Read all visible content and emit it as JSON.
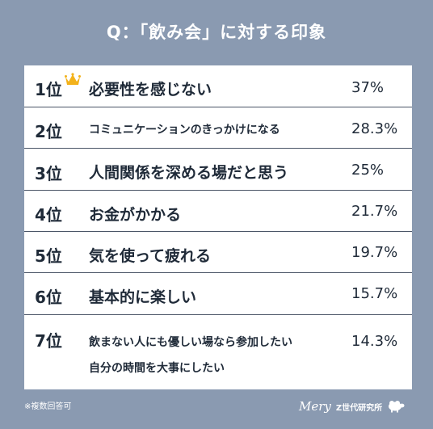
{
  "title": "Q：「飲み会」に対する印象",
  "chart_data": {
    "type": "table",
    "columns": [
      "rank",
      "label",
      "percent"
    ],
    "rows": [
      {
        "rank": "1位",
        "lines": [
          "必要性を感じない"
        ],
        "percent": "37%"
      },
      {
        "rank": "2位",
        "lines": [
          "コミュニケーションのきっかけになる"
        ],
        "percent": "28.3%"
      },
      {
        "rank": "3位",
        "lines": [
          "人間関係を深める場だと思う"
        ],
        "percent": "25%"
      },
      {
        "rank": "4位",
        "lines": [
          "お金がかかる"
        ],
        "percent": "21.7%"
      },
      {
        "rank": "5位",
        "lines": [
          "気を使って疲れる"
        ],
        "percent": "19.7%"
      },
      {
        "rank": "6位",
        "lines": [
          "基本的に楽しい"
        ],
        "percent": "15.7%"
      },
      {
        "rank": "7位",
        "lines": [
          "飲まない人にも優しい場なら参加したい",
          "自分の時間を大事にしたい"
        ],
        "percent": "14.3%"
      }
    ]
  },
  "footnote": "※複数回答可",
  "brand": {
    "name": "Mery",
    "lab": "Z世代研究所",
    "icon": "sheep-icon"
  },
  "colors": {
    "background": "#8a9ab1",
    "card": "#ffffff",
    "crown": "#f3b21b",
    "divider": "#4a5566"
  }
}
